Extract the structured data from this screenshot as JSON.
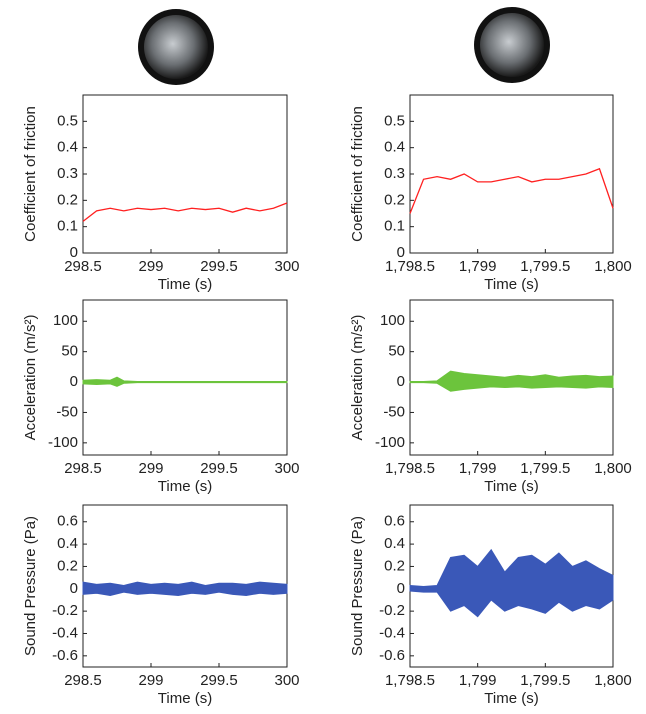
{
  "chart_data": [
    {
      "type": "line",
      "y_label": "Coefficient of friction",
      "x_label": "Time (s)",
      "xlim": [
        298.5,
        300
      ],
      "xticks": [
        298.5,
        299,
        299.5,
        300
      ],
      "ylim": [
        0,
        0.6
      ],
      "yticks": [
        0,
        0.1,
        0.2,
        0.3,
        0.4,
        0.5
      ],
      "color": "#ff2020",
      "x": [
        298.5,
        298.6,
        298.7,
        298.8,
        298.9,
        299,
        299.1,
        299.2,
        299.3,
        299.4,
        299.5,
        299.6,
        299.7,
        299.8,
        299.9,
        300
      ],
      "values": [
        0.12,
        0.16,
        0.17,
        0.16,
        0.17,
        0.165,
        0.17,
        0.16,
        0.17,
        0.165,
        0.17,
        0.155,
        0.17,
        0.16,
        0.17,
        0.19
      ]
    },
    {
      "type": "line",
      "y_label": "Coefficient of friction",
      "x_label": "Time (s)",
      "xlim": [
        1798.5,
        1800
      ],
      "xticks": [
        {
          "value": 1798.5,
          "label": "1,798.5"
        },
        {
          "value": 1799,
          "label": "1,799"
        },
        {
          "value": 1799.5,
          "label": "1,799.5"
        },
        {
          "value": 1800,
          "label": "1,800"
        }
      ],
      "ylim": [
        0,
        0.6
      ],
      "yticks": [
        0,
        0.1,
        0.2,
        0.3,
        0.4,
        0.5
      ],
      "color": "#ff2020",
      "x": [
        1798.5,
        1798.6,
        1798.7,
        1798.8,
        1798.9,
        1799,
        1799.1,
        1799.2,
        1799.3,
        1799.4,
        1799.5,
        1799.6,
        1799.7,
        1799.8,
        1799.9,
        1800
      ],
      "values": [
        0.15,
        0.28,
        0.29,
        0.28,
        0.3,
        0.27,
        0.27,
        0.28,
        0.29,
        0.27,
        0.28,
        0.28,
        0.29,
        0.3,
        0.32,
        0.17
      ]
    },
    {
      "type": "range",
      "y_label": "Acceleration (m/s²)",
      "x_label": "Time (s)",
      "xlim": [
        298.5,
        300
      ],
      "xticks": [
        298.5,
        299,
        299.5,
        300
      ],
      "ylim": [
        -120,
        135
      ],
      "yticks": [
        -100,
        -50,
        0,
        50,
        100
      ],
      "color": "#6cc43c",
      "x": [
        298.5,
        298.6,
        298.7,
        298.75,
        298.8,
        298.9,
        299,
        299.5,
        300
      ],
      "high": [
        3,
        4,
        3,
        8,
        2,
        1,
        1,
        1,
        1
      ],
      "low": [
        -3,
        -4,
        -3,
        -7,
        -2,
        -1,
        -1,
        -1,
        -1
      ]
    },
    {
      "type": "range",
      "y_label": "Acceleration (m/s²)",
      "x_label": "Time (s)",
      "xlim": [
        1798.5,
        1800
      ],
      "xticks": [
        {
          "value": 1798.5,
          "label": "1,798.5"
        },
        {
          "value": 1799,
          "label": "1,799"
        },
        {
          "value": 1799.5,
          "label": "1,799.5"
        },
        {
          "value": 1800,
          "label": "1,800"
        }
      ],
      "ylim": [
        -120,
        135
      ],
      "yticks": [
        -100,
        -50,
        0,
        50,
        100
      ],
      "color": "#6cc43c",
      "x": [
        1798.5,
        1798.6,
        1798.7,
        1798.8,
        1798.9,
        1799,
        1799.1,
        1799.2,
        1799.3,
        1799.4,
        1799.5,
        1799.6,
        1799.7,
        1799.8,
        1799.9,
        1800
      ],
      "high": [
        1,
        1,
        2,
        18,
        14,
        12,
        10,
        8,
        11,
        9,
        12,
        8,
        10,
        11,
        9,
        10
      ],
      "low": [
        -1,
        -1,
        -2,
        -15,
        -12,
        -10,
        -8,
        -9,
        -8,
        -10,
        -9,
        -8,
        -9,
        -10,
        -8,
        -9
      ]
    },
    {
      "type": "range",
      "y_label": "Sound Pressure (Pa)",
      "x_label": "Time (s)",
      "xlim": [
        298.5,
        300
      ],
      "xticks": [
        298.5,
        299,
        299.5,
        300
      ],
      "ylim": [
        -0.7,
        0.75
      ],
      "yticks": [
        -0.6,
        -0.4,
        -0.2,
        0,
        0.2,
        0.4,
        0.6
      ],
      "color": "#3a58b8",
      "x": [
        298.5,
        298.6,
        298.7,
        298.8,
        298.9,
        299,
        299.1,
        299.2,
        299.3,
        299.4,
        299.5,
        299.6,
        299.7,
        299.8,
        299.9,
        300
      ],
      "high": [
        0.06,
        0.04,
        0.05,
        0.03,
        0.06,
        0.04,
        0.05,
        0.04,
        0.06,
        0.03,
        0.05,
        0.05,
        0.04,
        0.06,
        0.05,
        0.04
      ],
      "low": [
        -0.05,
        -0.04,
        -0.06,
        -0.03,
        -0.05,
        -0.04,
        -0.05,
        -0.06,
        -0.04,
        -0.05,
        -0.03,
        -0.05,
        -0.06,
        -0.04,
        -0.05,
        -0.04
      ]
    },
    {
      "type": "range",
      "y_label": "Sound Pressure (Pa)",
      "x_label": "Time (s)",
      "xlim": [
        1798.5,
        1800
      ],
      "xticks": [
        {
          "value": 1798.5,
          "label": "1,798.5"
        },
        {
          "value": 1799,
          "label": "1,799"
        },
        {
          "value": 1799.5,
          "label": "1,799.5"
        },
        {
          "value": 1800,
          "label": "1,800"
        }
      ],
      "ylim": [
        -0.7,
        0.75
      ],
      "yticks": [
        -0.6,
        -0.4,
        -0.2,
        0,
        0.2,
        0.4,
        0.6
      ],
      "color": "#3a58b8",
      "x": [
        1798.5,
        1798.6,
        1798.7,
        1798.8,
        1798.9,
        1799,
        1799.1,
        1799.2,
        1799.3,
        1799.4,
        1799.5,
        1799.6,
        1799.7,
        1799.8,
        1799.9,
        1800
      ],
      "high": [
        0.03,
        0.02,
        0.03,
        0.28,
        0.3,
        0.2,
        0.35,
        0.15,
        0.28,
        0.3,
        0.22,
        0.32,
        0.2,
        0.25,
        0.18,
        0.12
      ],
      "low": [
        -0.02,
        -0.03,
        -0.03,
        -0.2,
        -0.15,
        -0.25,
        -0.1,
        -0.2,
        -0.15,
        -0.18,
        -0.22,
        -0.12,
        -0.2,
        -0.15,
        -0.18,
        -0.1
      ]
    }
  ]
}
